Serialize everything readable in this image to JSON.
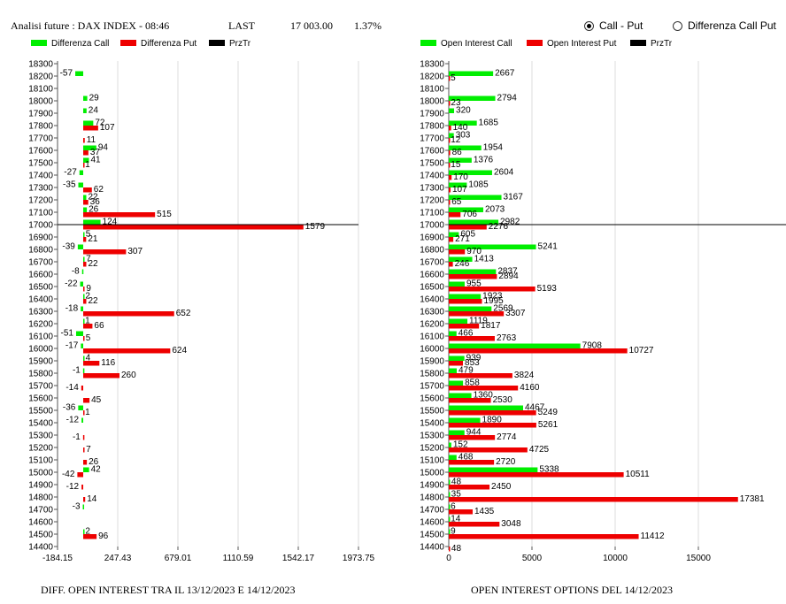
{
  "header": {
    "title": "Analisi future : DAX INDEX - 08:46",
    "last_label": "LAST",
    "last_value": "17 003.00",
    "change": "1.37%",
    "radio_options": [
      {
        "label": "Call - Put",
        "selected": true
      },
      {
        "label": "Differenza Call Put",
        "selected": false
      }
    ]
  },
  "colors": {
    "call": "#00ee00",
    "put": "#ee0000",
    "prztr": "#000000"
  },
  "chart_data": [
    {
      "type": "bar",
      "orientation": "horizontal",
      "caption": "DIFF. OPEN INTEREST TRA IL 13/12/2023 E 14/12/2023",
      "legend": [
        "Differenza Call",
        "Differenza Put",
        "PrzTr"
      ],
      "xlim": [
        -184.15,
        1973.75
      ],
      "x_ticks": [
        "-184.15",
        "247.43",
        "679.01",
        "1110.59",
        "1542.17",
        "1973.75"
      ],
      "price_line": 17000,
      "strikes": [
        18300,
        18200,
        18100,
        18000,
        17900,
        17800,
        17700,
        17600,
        17500,
        17400,
        17300,
        17200,
        17100,
        17000,
        16900,
        16800,
        16700,
        16600,
        16500,
        16400,
        16300,
        16200,
        16100,
        16000,
        15900,
        15800,
        15700,
        15600,
        15500,
        15400,
        15300,
        15200,
        15100,
        15000,
        14900,
        14800,
        14700,
        14600,
        14500,
        14400
      ],
      "series": [
        {
          "name": "Differenza Call",
          "values": [
            null,
            -57,
            null,
            29,
            24,
            72,
            null,
            94,
            41,
            -27,
            -35,
            22,
            26,
            124,
            5,
            -39,
            7,
            -8,
            -22,
            2,
            -18,
            1,
            -51,
            -17,
            4,
            -1,
            null,
            null,
            -36,
            -12,
            null,
            null,
            null,
            42,
            null,
            null,
            -3,
            null,
            2,
            null
          ]
        },
        {
          "name": "Differenza Put",
          "values": [
            null,
            null,
            null,
            null,
            null,
            107,
            11,
            37,
            1,
            null,
            62,
            36,
            515,
            1579,
            21,
            307,
            22,
            null,
            9,
            22,
            652,
            66,
            5,
            624,
            116,
            260,
            -14,
            45,
            1,
            null,
            -1,
            7,
            26,
            -42,
            -12,
            14,
            null,
            null,
            96,
            null
          ]
        }
      ]
    },
    {
      "type": "bar",
      "orientation": "horizontal",
      "caption": "OPEN INTEREST OPTIONS DEL 14/12/2023",
      "legend": [
        "Open Interest Call",
        "Open Interest Put",
        "PrzTr"
      ],
      "xlim": [
        0,
        20000
      ],
      "x_ticks": [
        "0",
        "5000",
        "10000",
        "15000"
      ],
      "price_line": 17000,
      "strikes": [
        18300,
        18200,
        18100,
        18000,
        17900,
        17800,
        17700,
        17600,
        17500,
        17400,
        17300,
        17200,
        17100,
        17000,
        16900,
        16800,
        16700,
        16600,
        16500,
        16400,
        16300,
        16200,
        16100,
        16000,
        15900,
        15800,
        15700,
        15600,
        15500,
        15400,
        15300,
        15200,
        15100,
        15000,
        14900,
        14800,
        14700,
        14600,
        14500,
        14400
      ],
      "series": [
        {
          "name": "Open Interest Call",
          "values": [
            null,
            2667,
            null,
            2794,
            320,
            1685,
            303,
            1954,
            1376,
            2604,
            1085,
            3167,
            2073,
            2982,
            605,
            5241,
            1413,
            2837,
            955,
            1923,
            2569,
            1119,
            466,
            7908,
            939,
            479,
            858,
            1360,
            4467,
            1890,
            944,
            152,
            468,
            5338,
            48,
            35,
            6,
            14,
            9,
            null
          ]
        },
        {
          "name": "Open Interest Put",
          "values": [
            null,
            5,
            null,
            23,
            null,
            140,
            12,
            86,
            15,
            170,
            107,
            65,
            706,
            2276,
            271,
            970,
            246,
            2894,
            5193,
            1995,
            3307,
            1817,
            2763,
            10727,
            853,
            3824,
            4160,
            2530,
            5249,
            5261,
            2774,
            4725,
            2720,
            10511,
            2450,
            17381,
            1435,
            3048,
            11412,
            48
          ]
        }
      ]
    }
  ]
}
